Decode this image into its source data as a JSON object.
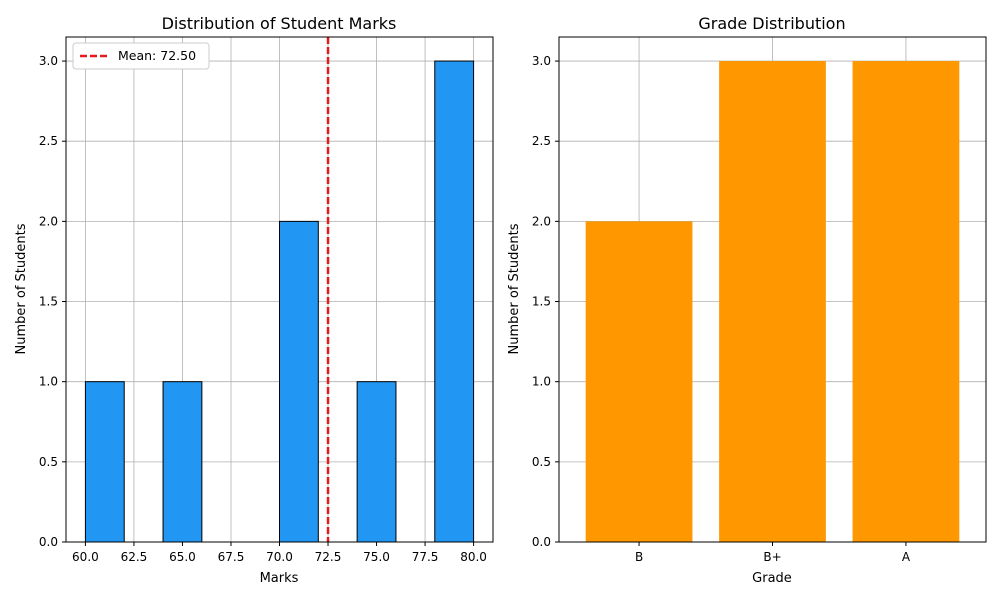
{
  "chart_data": [
    {
      "type": "bar",
      "title": "Distribution of Student Marks",
      "xlabel": "Marks",
      "ylabel": "Number of Students",
      "xlim": [
        59.0,
        81.0
      ],
      "ylim": [
        0,
        3.15
      ],
      "bins": [
        {
          "x0": 60,
          "x1": 62,
          "count": 1
        },
        {
          "x0": 62,
          "x1": 64,
          "count": 0
        },
        {
          "x0": 64,
          "x1": 66,
          "count": 1
        },
        {
          "x0": 66,
          "x1": 68,
          "count": 0
        },
        {
          "x0": 68,
          "x1": 70,
          "count": 0
        },
        {
          "x0": 70,
          "x1": 72,
          "count": 2
        },
        {
          "x0": 72,
          "x1": 74,
          "count": 0
        },
        {
          "x0": 74,
          "x1": 76,
          "count": 1
        },
        {
          "x0": 76,
          "x1": 78,
          "count": 0
        },
        {
          "x0": 78,
          "x1": 80,
          "count": 3
        }
      ],
      "xticks": [
        60.0,
        62.5,
        65.0,
        67.5,
        70.0,
        72.5,
        75.0,
        77.5,
        80.0
      ],
      "xtick_labels": [
        "60.0",
        "62.5",
        "65.0",
        "67.5",
        "70.0",
        "72.5",
        "75.0",
        "77.5",
        "80.0"
      ],
      "yticks": [
        0,
        0.5,
        1.0,
        1.5,
        2.0,
        2.5,
        3.0
      ],
      "ytick_labels": [
        "0.0",
        "0.5",
        "1.0",
        "1.5",
        "2.0",
        "2.5",
        "3.0"
      ],
      "mean_line": {
        "value": 72.5,
        "label": "Mean: 72.50",
        "color": "#e41a1c"
      },
      "bar_color": "#2196f3",
      "grid": true,
      "legend_position": "top-left"
    },
    {
      "type": "bar",
      "title": "Grade Distribution",
      "xlabel": "Grade",
      "ylabel": "Number of Students",
      "categories": [
        "B",
        "B+",
        "A"
      ],
      "values": [
        2,
        3,
        3
      ],
      "ylim": [
        0,
        3.15
      ],
      "yticks": [
        0,
        0.5,
        1.0,
        1.5,
        2.0,
        2.5,
        3.0
      ],
      "ytick_labels": [
        "0.0",
        "0.5",
        "1.0",
        "1.5",
        "2.0",
        "2.5",
        "3.0"
      ],
      "bar_color": "#ff9800",
      "grid": true
    }
  ]
}
